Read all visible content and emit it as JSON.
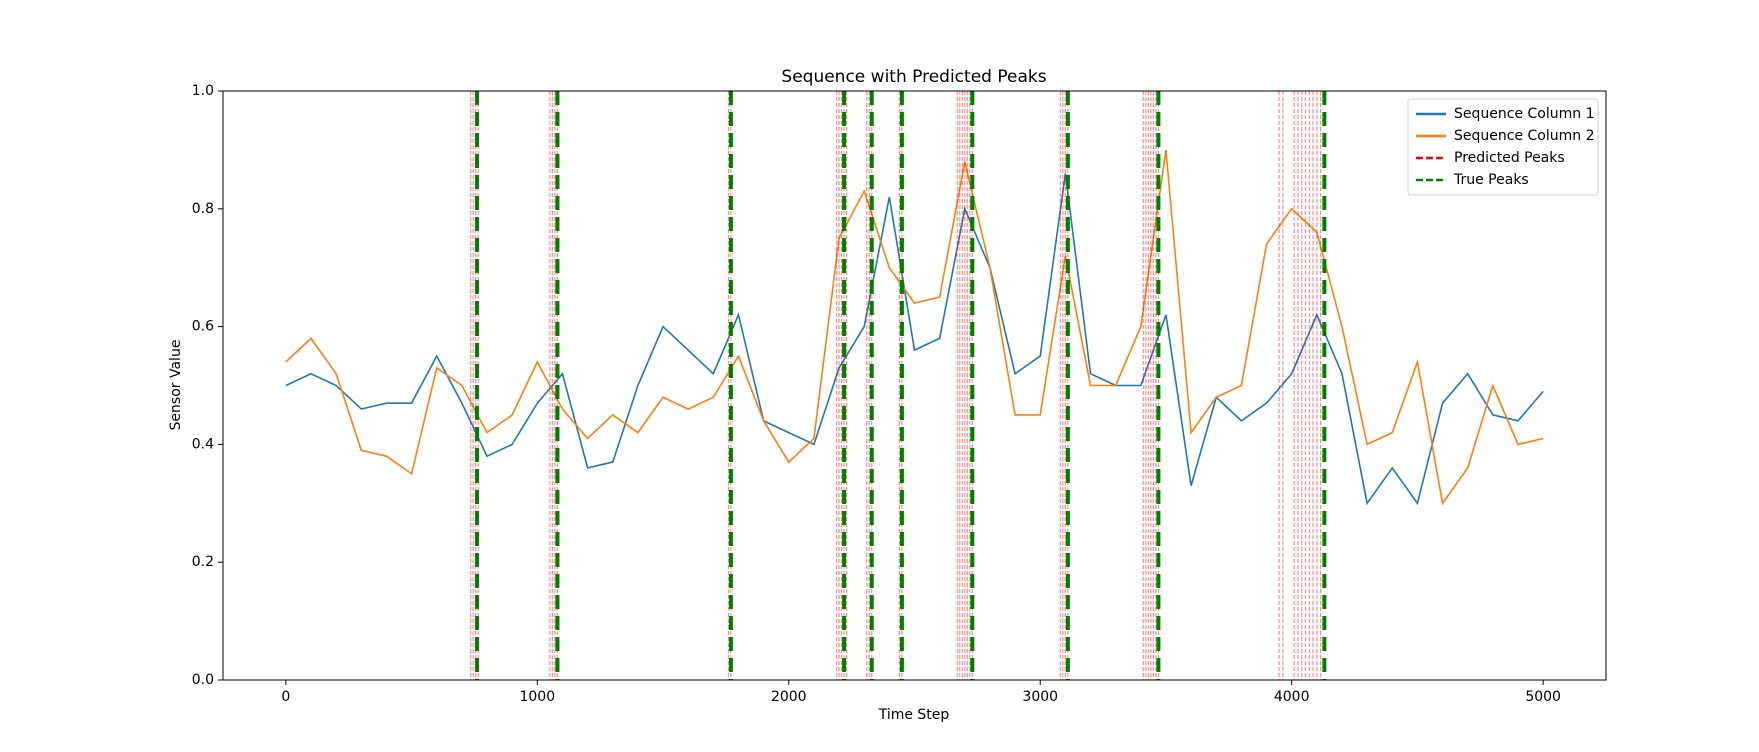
{
  "chart_data": {
    "type": "line",
    "title": "Sequence with Predicted Peaks",
    "x_label": "Time Step",
    "y_label": "Sensor Value",
    "x": [
      0,
      100,
      200,
      300,
      400,
      500,
      600,
      700,
      800,
      900,
      1000,
      1100,
      1200,
      1300,
      1400,
      1500,
      1600,
      1700,
      1800,
      1900,
      2000,
      2100,
      2200,
      2300,
      2400,
      2500,
      2600,
      2700,
      2800,
      2900,
      3000,
      3100,
      3200,
      3300,
      3400,
      3500,
      3600,
      3700,
      3800,
      3900,
      4000,
      4100,
      4200,
      4300,
      4400,
      4500,
      4600,
      4700,
      4800,
      4900,
      5000
    ],
    "series": [
      {
        "name": "Sequence Column 1",
        "color": "#1f77b4",
        "values": [
          0.5,
          0.52,
          0.5,
          0.46,
          0.47,
          0.47,
          0.55,
          0.47,
          0.38,
          0.4,
          0.47,
          0.52,
          0.36,
          0.37,
          0.5,
          0.6,
          0.56,
          0.52,
          0.62,
          0.44,
          0.42,
          0.4,
          0.53,
          0.6,
          0.82,
          0.56,
          0.58,
          0.8,
          0.7,
          0.52,
          0.55,
          0.86,
          0.52,
          0.5,
          0.5,
          0.62,
          0.33,
          0.48,
          0.44,
          0.47,
          0.52,
          0.62,
          0.52,
          0.3,
          0.36,
          0.3,
          0.47,
          0.52,
          0.45,
          0.44,
          0.49
        ]
      },
      {
        "name": "Sequence Column 2",
        "color": "#ff7f0e",
        "values": [
          0.54,
          0.58,
          0.52,
          0.39,
          0.38,
          0.35,
          0.53,
          0.5,
          0.42,
          0.45,
          0.54,
          0.46,
          0.41,
          0.45,
          0.42,
          0.48,
          0.46,
          0.48,
          0.55,
          0.44,
          0.37,
          0.41,
          0.75,
          0.83,
          0.7,
          0.64,
          0.65,
          0.88,
          0.7,
          0.45,
          0.45,
          0.72,
          0.5,
          0.5,
          0.6,
          0.9,
          0.42,
          0.48,
          0.5,
          0.74,
          0.8,
          0.76,
          0.6,
          0.4,
          0.42,
          0.54,
          0.3,
          0.36,
          0.5,
          0.4,
          0.41
        ]
      }
    ],
    "peaks": [
      {
        "name": "Predicted Peaks",
        "color": "#ff0000",
        "x": [
          735,
          745,
          755,
          765,
          1050,
          1060,
          1070,
          1080,
          1760,
          1770,
          2190,
          2200,
          2210,
          2220,
          2230,
          2310,
          2320,
          2330,
          2440,
          2450,
          2670,
          2680,
          2690,
          2700,
          2710,
          2720,
          2730,
          3080,
          3090,
          3100,
          3110,
          3410,
          3420,
          3430,
          3440,
          3450,
          3460,
          3470,
          3950,
          3965,
          4010,
          4025,
          4040,
          4055,
          4070,
          4085,
          4100,
          4115
        ]
      },
      {
        "name": "True Peaks",
        "color": "#008000",
        "x": [
          760,
          1080,
          1770,
          2220,
          2330,
          2450,
          2730,
          3110,
          3470,
          4130
        ]
      }
    ],
    "xlim": [
      -250,
      5250
    ],
    "ylim": [
      0,
      1
    ],
    "xticks": [
      0,
      1000,
      2000,
      3000,
      4000,
      5000
    ],
    "yticks": [
      {
        "value": 0,
        "label": "0.0"
      },
      0.2,
      0.4,
      0.6,
      0.8,
      {
        "value": 1,
        "label": "1.0"
      }
    ],
    "legend": "upper right"
  }
}
